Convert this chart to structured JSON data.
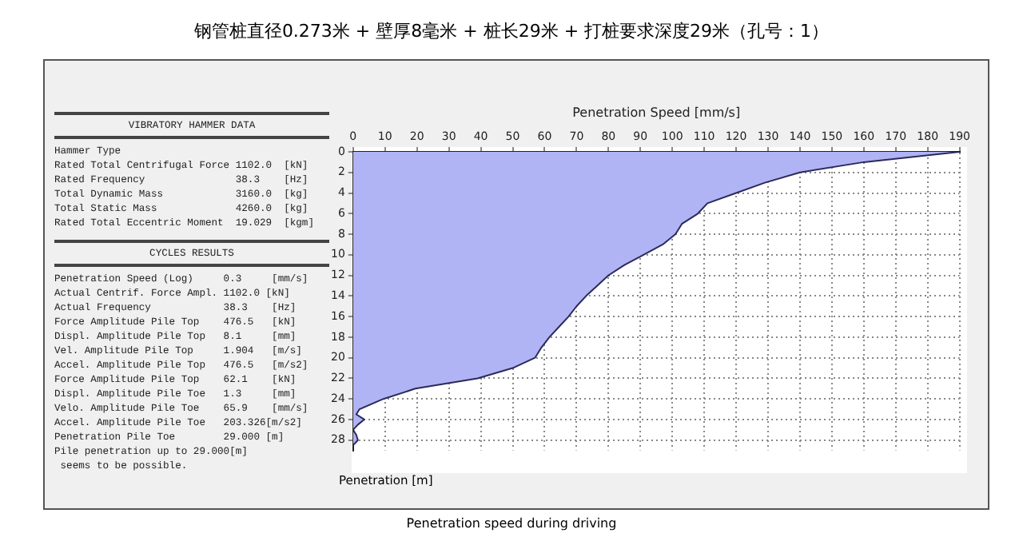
{
  "chart_data": [
    {
      "type": "other",
      "title": "VIBRATORY HAMMER DATA",
      "annotations": [
        "Hammer Type",
        "Rated Total Centrifugal Force 1102.0  [kN]",
        "Rated Frequency               38.3    [Hz]",
        "Total Dynamic Mass            3160.0  [kg]",
        "Total Static Mass             4260.0  [kg]",
        "Rated Total Eccentric Moment  19.029  [kgm]"
      ]
    },
    {
      "type": "other",
      "title": "CYCLES RESULTS",
      "annotations": [
        "Penetration Speed (Log)     0.3     [mm/s]",
        "Actual Centrif. Force Ampl. 1102.0 [kN]",
        "Actual Frequency            38.3    [Hz]",
        "Force Amplitude Pile Top    476.5   [kN]",
        "Displ. Amplitude Pile Top   8.1     [mm]",
        "Vel. Amplitude Pile Top     1.904   [m/s]",
        "Accel. Amplitude Pile Top   476.5   [m/s2]",
        "Force Amplitude Pile Top    62.1    [kN]",
        "Displ. Amplitude Pile Toe   1.3     [mm]",
        "Velo. Amplitude Pile Toe    65.9    [mm/s]",
        "Accel. Amplitude Pile Toe   203.326[m/s2]",
        "Penetration Pile Toe        29.000 [m]",
        "Pile penetration up to 29.000[m]",
        " seems to be possible."
      ]
    },
    {
      "type": "area",
      "orientation": "horizontal",
      "title": "钢管桩直径0.273米 + 壁厚8毫米 + 桩长29米 + 打桩要求深度29米（孔号：1）",
      "xlabel": "Penetration Speed [mm/s]",
      "ylabel": "Penetration [m]",
      "annotations": [
        "Penetration speed during driving"
      ],
      "x": [
        0,
        1,
        2,
        3,
        4,
        5,
        6,
        7,
        8,
        9,
        10,
        11,
        12,
        13,
        14,
        15,
        16,
        17,
        18,
        19,
        20,
        21,
        22,
        23,
        24,
        25,
        25.5,
        26,
        26.5,
        27,
        27.5,
        28,
        28.5
      ],
      "series": [
        {
          "color": "#b0b4f4",
          "values": [
            190,
            160,
            140,
            129,
            120,
            111,
            108,
            103,
            101,
            97,
            91,
            85,
            80,
            76.5,
            73,
            70,
            67.5,
            64.5,
            61.5,
            59,
            57,
            50,
            39,
            19.5,
            9.5,
            2,
            1,
            3.5,
            1.5,
            0,
            1,
            1.5,
            0
          ]
        }
      ],
      "xlim": [
        0,
        190
      ],
      "xticks": [
        0,
        10,
        20,
        30,
        40,
        50,
        60,
        70,
        80,
        90,
        100,
        110,
        120,
        130,
        140,
        150,
        160,
        170,
        180,
        190
      ],
      "ylim": [
        29,
        0
      ],
      "yticks": [
        0,
        2,
        4,
        6,
        8,
        10,
        12,
        14,
        16,
        18,
        20,
        22,
        24,
        26,
        28
      ],
      "grid": true,
      "legend": false
    }
  ]
}
